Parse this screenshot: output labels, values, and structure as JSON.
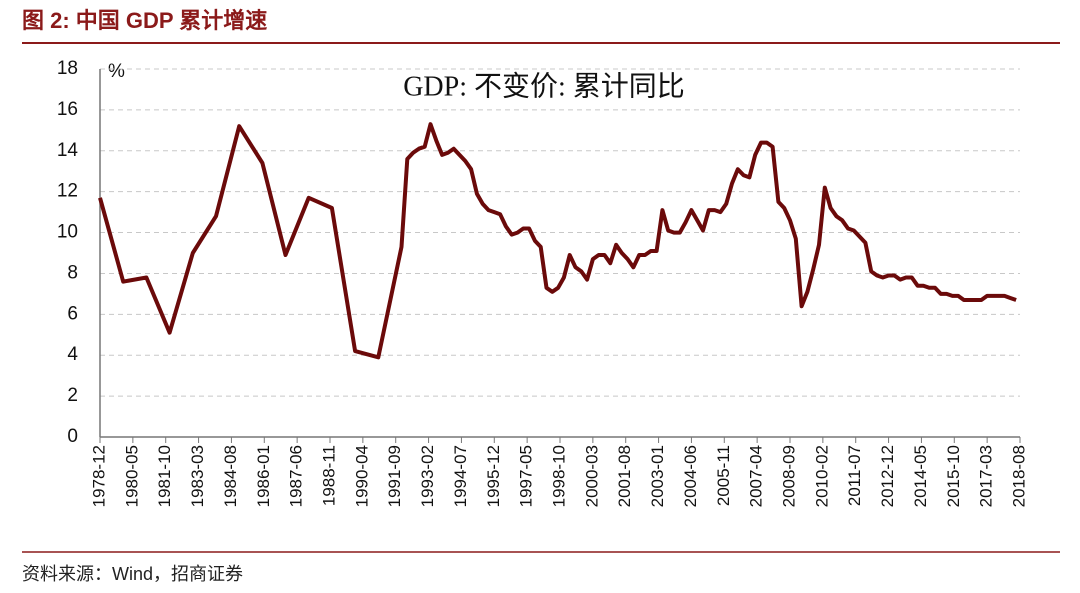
{
  "chart_data": {
    "type": "line",
    "title": "图 2:  中国 GDP 累计增速",
    "subtitle": "GDP: 不变价: 累计同比",
    "y_label": "%",
    "source": "资料来源：Wind，招商证券",
    "x": [
      "1978-12",
      "1979-12",
      "1980-12",
      "1981-12",
      "1982-12",
      "1983-12",
      "1984-12",
      "1985-12",
      "1986-12",
      "1987-12",
      "1988-12",
      "1989-12",
      "1990-12",
      "1991-12",
      "1992-03",
      "1992-06",
      "1992-09",
      "1992-12",
      "1993-03",
      "1993-06",
      "1993-09",
      "1993-12",
      "1994-03",
      "1994-06",
      "1994-09",
      "1994-12",
      "1995-03",
      "1995-06",
      "1995-09",
      "1995-12",
      "1996-03",
      "1996-06",
      "1996-09",
      "1996-12",
      "1997-03",
      "1997-06",
      "1997-09",
      "1997-12",
      "1998-03",
      "1998-06",
      "1998-09",
      "1998-12",
      "1999-03",
      "1999-06",
      "1999-09",
      "1999-12",
      "2000-03",
      "2000-06",
      "2000-09",
      "2000-12",
      "2001-03",
      "2001-06",
      "2001-09",
      "2001-12",
      "2002-03",
      "2002-06",
      "2002-09",
      "2002-12",
      "2003-03",
      "2003-06",
      "2003-09",
      "2003-12",
      "2004-03",
      "2004-06",
      "2004-09",
      "2004-12",
      "2005-03",
      "2005-06",
      "2005-09",
      "2005-12",
      "2006-03",
      "2006-06",
      "2006-09",
      "2006-12",
      "2007-03",
      "2007-06",
      "2007-09",
      "2007-12",
      "2008-03",
      "2008-06",
      "2008-09",
      "2008-12",
      "2009-03",
      "2009-06",
      "2009-09",
      "2009-12",
      "2010-03",
      "2010-06",
      "2010-09",
      "2010-12",
      "2011-03",
      "2011-06",
      "2011-09",
      "2011-12",
      "2012-03",
      "2012-06",
      "2012-09",
      "2012-12",
      "2013-03",
      "2013-06",
      "2013-09",
      "2013-12",
      "2014-03",
      "2014-06",
      "2014-09",
      "2014-12",
      "2015-03",
      "2015-06",
      "2015-09",
      "2015-12",
      "2016-03",
      "2016-06",
      "2016-09",
      "2016-12",
      "2017-03",
      "2017-06",
      "2017-09",
      "2017-12",
      "2018-03",
      "2018-06"
    ],
    "series": [
      {
        "name": "GDP: 不变价: 累计同比",
        "color": "#6b0a0a",
        "values": [
          11.7,
          7.6,
          7.8,
          5.1,
          9.0,
          10.8,
          15.2,
          13.4,
          8.9,
          11.7,
          11.2,
          4.2,
          3.9,
          9.3,
          13.6,
          13.9,
          14.1,
          14.2,
          15.3,
          14.5,
          13.8,
          13.9,
          14.1,
          13.8,
          13.5,
          13.1,
          11.9,
          11.4,
          11.1,
          11.0,
          10.9,
          10.3,
          9.9,
          10.0,
          10.2,
          10.2,
          9.6,
          9.3,
          7.3,
          7.1,
          7.3,
          7.8,
          8.9,
          8.3,
          8.1,
          7.7,
          8.7,
          8.9,
          8.9,
          8.5,
          9.4,
          9.0,
          8.7,
          8.3,
          8.9,
          8.9,
          9.1,
          9.1,
          11.1,
          10.1,
          10.0,
          10.0,
          10.5,
          11.1,
          10.6,
          10.1,
          11.1,
          11.1,
          11.0,
          11.4,
          12.4,
          13.1,
          12.8,
          12.7,
          13.8,
          14.4,
          14.4,
          14.2,
          11.5,
          11.2,
          10.6,
          9.7,
          6.4,
          7.1,
          8.2,
          9.4,
          12.2,
          11.2,
          10.8,
          10.6,
          10.2,
          10.1,
          9.8,
          9.5,
          8.1,
          7.9,
          7.8,
          7.9,
          7.9,
          7.7,
          7.8,
          7.8,
          7.4,
          7.4,
          7.3,
          7.3,
          7.0,
          7.0,
          6.9,
          6.9,
          6.7,
          6.7,
          6.7,
          6.7,
          6.9,
          6.9,
          6.9,
          6.9,
          6.8,
          6.7
        ]
      }
    ],
    "xlim": [
      "1978-12",
      "2018-08"
    ],
    "xticks": [
      "1978-12",
      "1980-05",
      "1981-10",
      "1983-03",
      "1984-08",
      "1986-01",
      "1987-06",
      "1988-11",
      "1990-04",
      "1991-09",
      "1993-02",
      "1994-07",
      "1995-12",
      "1997-05",
      "1998-10",
      "2000-03",
      "2001-08",
      "2003-01",
      "2004-06",
      "2005-11",
      "2007-04",
      "2008-09",
      "2010-02",
      "2011-07",
      "2012-12",
      "2014-05",
      "2015-10",
      "2017-03",
      "2018-08"
    ],
    "ylim": [
      0,
      18
    ],
    "yticks": [
      0,
      2,
      4,
      6,
      8,
      10,
      12,
      14,
      16,
      18
    ],
    "grid": true
  }
}
